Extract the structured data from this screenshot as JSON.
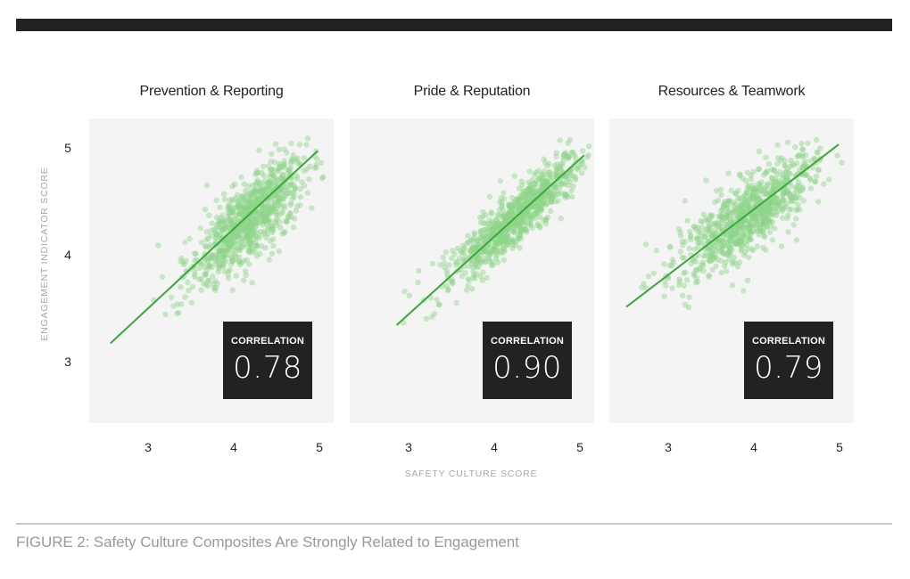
{
  "figure": {
    "caption": "FIGURE 2: Safety Culture Composites Are Strongly Related to Engagement",
    "y_axis_label": "ENGAGEMENT INDICATOR SCORE",
    "x_axis_label": "SAFETY CULTURE SCORE",
    "correlation_label": "CORRELATION",
    "y_ticks": [
      "5",
      "4",
      "3"
    ],
    "x_ticks": [
      "3",
      "4",
      "5"
    ]
  },
  "colors": {
    "top_bar": "#222222",
    "panel_bg": "#f4f4f4",
    "dot": "#8fd48a",
    "trend_line": "#3aa83a",
    "corr_box": "#222222"
  },
  "chart_data": [
    {
      "type": "scatter",
      "title": "Prevention & Reporting",
      "xlabel": "SAFETY CULTURE SCORE",
      "ylabel": "ENGAGEMENT INDICATOR SCORE",
      "xlim": [
        2.4,
        5.2
      ],
      "ylim": [
        2.5,
        5.35
      ],
      "x_ticks": [
        3,
        4,
        5
      ],
      "y_ticks": [
        3,
        4,
        5
      ],
      "correlation": "0.78",
      "trend_line": {
        "x": [
          2.56,
          4.98
        ],
        "y": [
          3.18,
          4.98
        ]
      },
      "point_cloud": {
        "count": 900,
        "center_x": 4.2,
        "center_y": 4.35,
        "sd_x": 0.32,
        "sd_y": 0.28,
        "r": 0.78,
        "x_range": [
          2.55,
          5.05
        ],
        "y_range": [
          3.25,
          5.1
        ],
        "seed": 11
      }
    },
    {
      "type": "scatter",
      "title": "Pride & Reputation",
      "xlabel": "SAFETY CULTURE SCORE",
      "ylabel": "ENGAGEMENT INDICATOR SCORE",
      "xlim": [
        2.4,
        5.2
      ],
      "ylim": [
        2.5,
        5.35
      ],
      "x_ticks": [
        3,
        4,
        5
      ],
      "y_ticks": [
        3,
        4,
        5
      ],
      "correlation": "0.90",
      "trend_line": {
        "x": [
          2.86,
          5.05
        ],
        "y": [
          3.35,
          4.94
        ]
      },
      "point_cloud": {
        "count": 900,
        "center_x": 4.25,
        "center_y": 4.35,
        "sd_x": 0.36,
        "sd_y": 0.28,
        "r": 0.9,
        "x_range": [
          2.85,
          5.12
        ],
        "y_range": [
          3.28,
          5.12
        ],
        "seed": 23
      }
    },
    {
      "type": "scatter",
      "title": "Resources & Teamwork",
      "xlabel": "SAFETY CULTURE SCORE",
      "ylabel": "ENGAGEMENT INDICATOR SCORE",
      "xlim": [
        2.4,
        5.2
      ],
      "ylim": [
        2.5,
        5.35
      ],
      "x_ticks": [
        3,
        4,
        5
      ],
      "y_ticks": [
        3,
        4,
        5
      ],
      "correlation": "0.79",
      "trend_line": {
        "x": [
          2.51,
          4.99
        ],
        "y": [
          3.52,
          5.04
        ]
      },
      "point_cloud": {
        "count": 900,
        "center_x": 3.95,
        "center_y": 4.38,
        "sd_x": 0.38,
        "sd_y": 0.26,
        "r": 0.79,
        "x_range": [
          2.5,
          5.05
        ],
        "y_range": [
          3.3,
          5.1
        ],
        "seed": 37
      }
    }
  ]
}
